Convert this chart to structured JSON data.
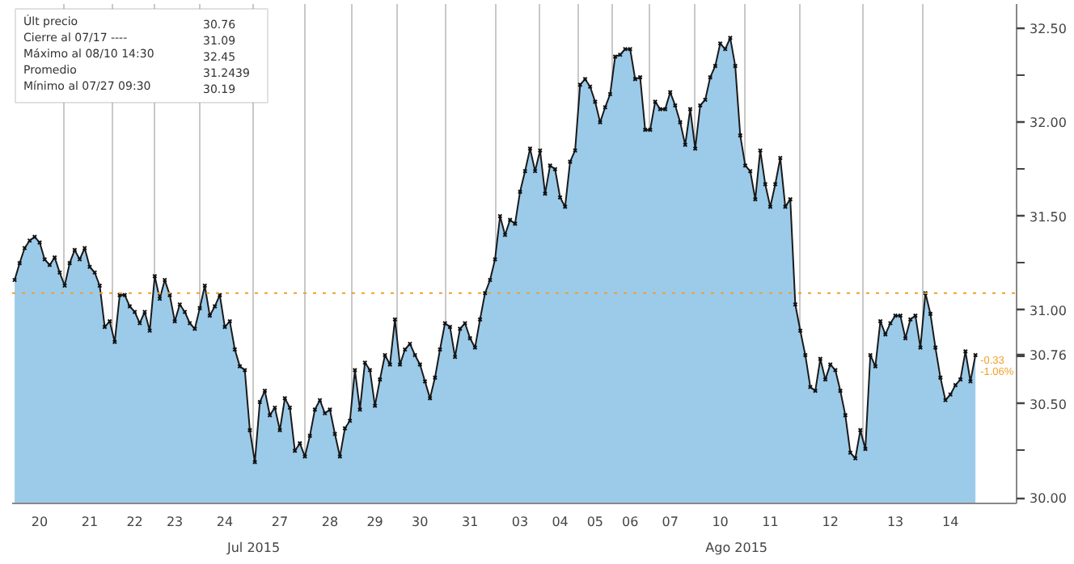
{
  "chart_data": {
    "type": "area",
    "categories": [
      null,
      null,
      null,
      null,
      null,
      "20",
      null,
      null,
      null,
      null,
      null,
      null,
      null,
      null,
      null,
      "21",
      null,
      null,
      null,
      null,
      null,
      null,
      null,
      null,
      "22",
      null,
      null,
      null,
      null,
      null,
      null,
      null,
      "23",
      null,
      null,
      null,
      null,
      null,
      null,
      null,
      null,
      null,
      "24",
      null,
      null,
      null,
      null,
      null,
      null,
      null,
      null,
      null,
      null,
      "27",
      null,
      null,
      null,
      null,
      null,
      null,
      null,
      null,
      null,
      "28",
      null,
      null,
      null,
      null,
      null,
      null,
      null,
      null,
      "29",
      null,
      null,
      null,
      null,
      null,
      null,
      null,
      null,
      "30",
      null,
      null,
      null,
      null,
      null,
      null,
      null,
      null,
      null,
      "31",
      null,
      null,
      null,
      null,
      null,
      null,
      null,
      null,
      null,
      "03",
      null,
      null,
      null,
      null,
      null,
      null,
      null,
      "04",
      null,
      null,
      null,
      null,
      null,
      null,
      "05",
      null,
      null,
      null,
      null,
      null,
      null,
      "06",
      null,
      null,
      null,
      null,
      null,
      null,
      null,
      "07",
      null,
      null,
      null,
      null,
      null,
      null,
      null,
      null,
      null,
      "10",
      null,
      null,
      null,
      null,
      null,
      null,
      null,
      null,
      null,
      "11",
      null,
      null,
      null,
      null,
      null,
      null,
      null,
      null,
      null,
      null,
      null,
      "12",
      null,
      null,
      null,
      null,
      null,
      null,
      null,
      null,
      null,
      null,
      null,
      null,
      "13",
      null,
      null,
      null,
      null,
      null,
      null,
      null,
      null,
      null,
      null,
      "14",
      null,
      null,
      null,
      null,
      null
    ],
    "series": [
      {
        "color": "#9ccbea",
        "values": [
          31.16,
          31.25,
          31.33,
          31.37,
          31.39,
          31.36,
          31.27,
          31.24,
          31.28,
          31.2,
          31.13,
          31.25,
          31.32,
          31.27,
          31.33,
          31.23,
          31.2,
          31.13,
          30.91,
          30.94,
          30.83,
          31.08,
          31.08,
          31.02,
          30.99,
          30.93,
          30.99,
          30.89,
          31.18,
          31.06,
          31.16,
          31.08,
          30.94,
          31.03,
          30.99,
          30.93,
          30.9,
          31.01,
          31.13,
          30.97,
          31.02,
          31.08,
          30.91,
          30.94,
          30.79,
          30.7,
          30.68,
          30.36,
          30.19,
          30.51,
          30.57,
          30.44,
          30.48,
          30.36,
          30.53,
          30.48,
          30.25,
          30.29,
          30.22,
          30.33,
          30.47,
          30.52,
          30.45,
          30.47,
          30.34,
          30.22,
          30.37,
          30.41,
          30.68,
          30.47,
          30.72,
          30.68,
          30.49,
          30.63,
          30.76,
          30.71,
          30.95,
          30.71,
          30.79,
          30.82,
          30.76,
          30.71,
          30.62,
          30.53,
          30.64,
          30.79,
          30.93,
          30.91,
          30.75,
          30.9,
          30.93,
          30.85,
          30.8,
          30.95,
          31.09,
          31.16,
          31.27,
          31.5,
          31.4,
          31.48,
          31.46,
          31.63,
          31.74,
          31.86,
          31.74,
          31.85,
          31.62,
          31.77,
          31.75,
          31.6,
          31.55,
          31.79,
          31.85,
          32.2,
          32.23,
          32.19,
          32.11,
          32.0,
          32.08,
          32.15,
          32.35,
          32.36,
          32.39,
          32.39,
          32.23,
          32.24,
          31.96,
          31.96,
          32.11,
          32.07,
          32.07,
          32.16,
          32.09,
          32.0,
          31.88,
          32.07,
          31.86,
          32.09,
          32.12,
          32.24,
          32.3,
          32.42,
          32.39,
          32.45,
          32.3,
          31.93,
          31.77,
          31.74,
          31.59,
          31.85,
          31.67,
          31.55,
          31.67,
          31.81,
          31.55,
          31.59,
          31.03,
          30.89,
          30.76,
          30.59,
          30.57,
          30.74,
          30.63,
          30.71,
          30.68,
          30.57,
          30.44,
          30.24,
          30.21,
          30.36,
          30.26,
          30.76,
          30.7,
          30.94,
          30.87,
          30.93,
          30.97,
          30.97,
          30.85,
          30.95,
          30.97,
          30.8,
          31.09,
          30.98,
          30.8,
          30.64,
          30.52,
          30.55,
          30.6,
          30.63,
          30.78,
          30.62,
          30.76
        ]
      }
    ],
    "ylim": [
      29.97,
      32.63
    ],
    "yticks": [
      {
        "value": 30,
        "label": "30.00"
      },
      {
        "value": 30.5,
        "label": "30.50"
      },
      {
        "value": 30.76,
        "label": "30.76"
      },
      {
        "value": 31,
        "label": "31.00"
      },
      {
        "value": 31.5,
        "label": "31.50"
      },
      {
        "value": 32,
        "label": "32.00"
      },
      {
        "value": 32.5,
        "label": "32.50"
      }
    ],
    "grid": "x",
    "marker": "cross",
    "line_style": "solid",
    "ref_lines": [
      {
        "axis": "y",
        "value": 31.09,
        "color": "#f0a02a",
        "line_style": "dotted"
      }
    ],
    "annotations": [
      "Últ precio",
      "30.76",
      "Cierre al 07/17 ----",
      "31.09",
      "Máximo al 08/10 14:30",
      "32.45",
      "Promedio",
      "31.2439",
      "Mínimo al 07/27 09:30",
      "30.19",
      "-0.33",
      "-1.06%",
      "Jul 2015",
      "Ago 2015"
    ]
  }
}
